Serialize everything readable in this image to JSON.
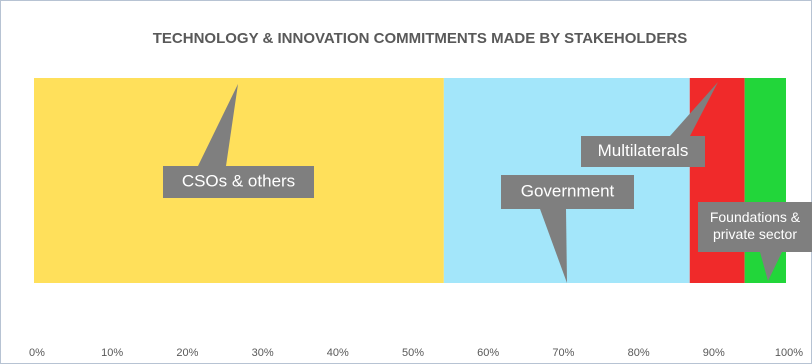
{
  "chart_data": {
    "type": "bar",
    "orientation": "horizontal-stacked-100",
    "title": "TECHNOLOGY & INNOVATION COMMITMENTS MADE BY STAKEHOLDERS",
    "xlim": [
      0,
      100
    ],
    "x_ticks": [
      "0%",
      "10%",
      "20%",
      "30%",
      "40%",
      "50%",
      "60%",
      "70%",
      "80%",
      "90%",
      "100%"
    ],
    "grid": false,
    "series": [
      {
        "name": "CSOs & others",
        "label_lines": [
          "CSOs & others"
        ],
        "value": 54.5,
        "color": "#FFE05B"
      },
      {
        "name": "Government",
        "label_lines": [
          "Government"
        ],
        "value": 32.7,
        "color": "#A3E6FA"
      },
      {
        "name": "Multilaterals",
        "label_lines": [
          "Multilaterals"
        ],
        "value": 7.3,
        "color": "#F02A2A"
      },
      {
        "name": "Foundations & private sector",
        "label_lines": [
          "Foundations &",
          "private sector"
        ],
        "value": 5.5,
        "color": "#22D63A"
      }
    ]
  }
}
